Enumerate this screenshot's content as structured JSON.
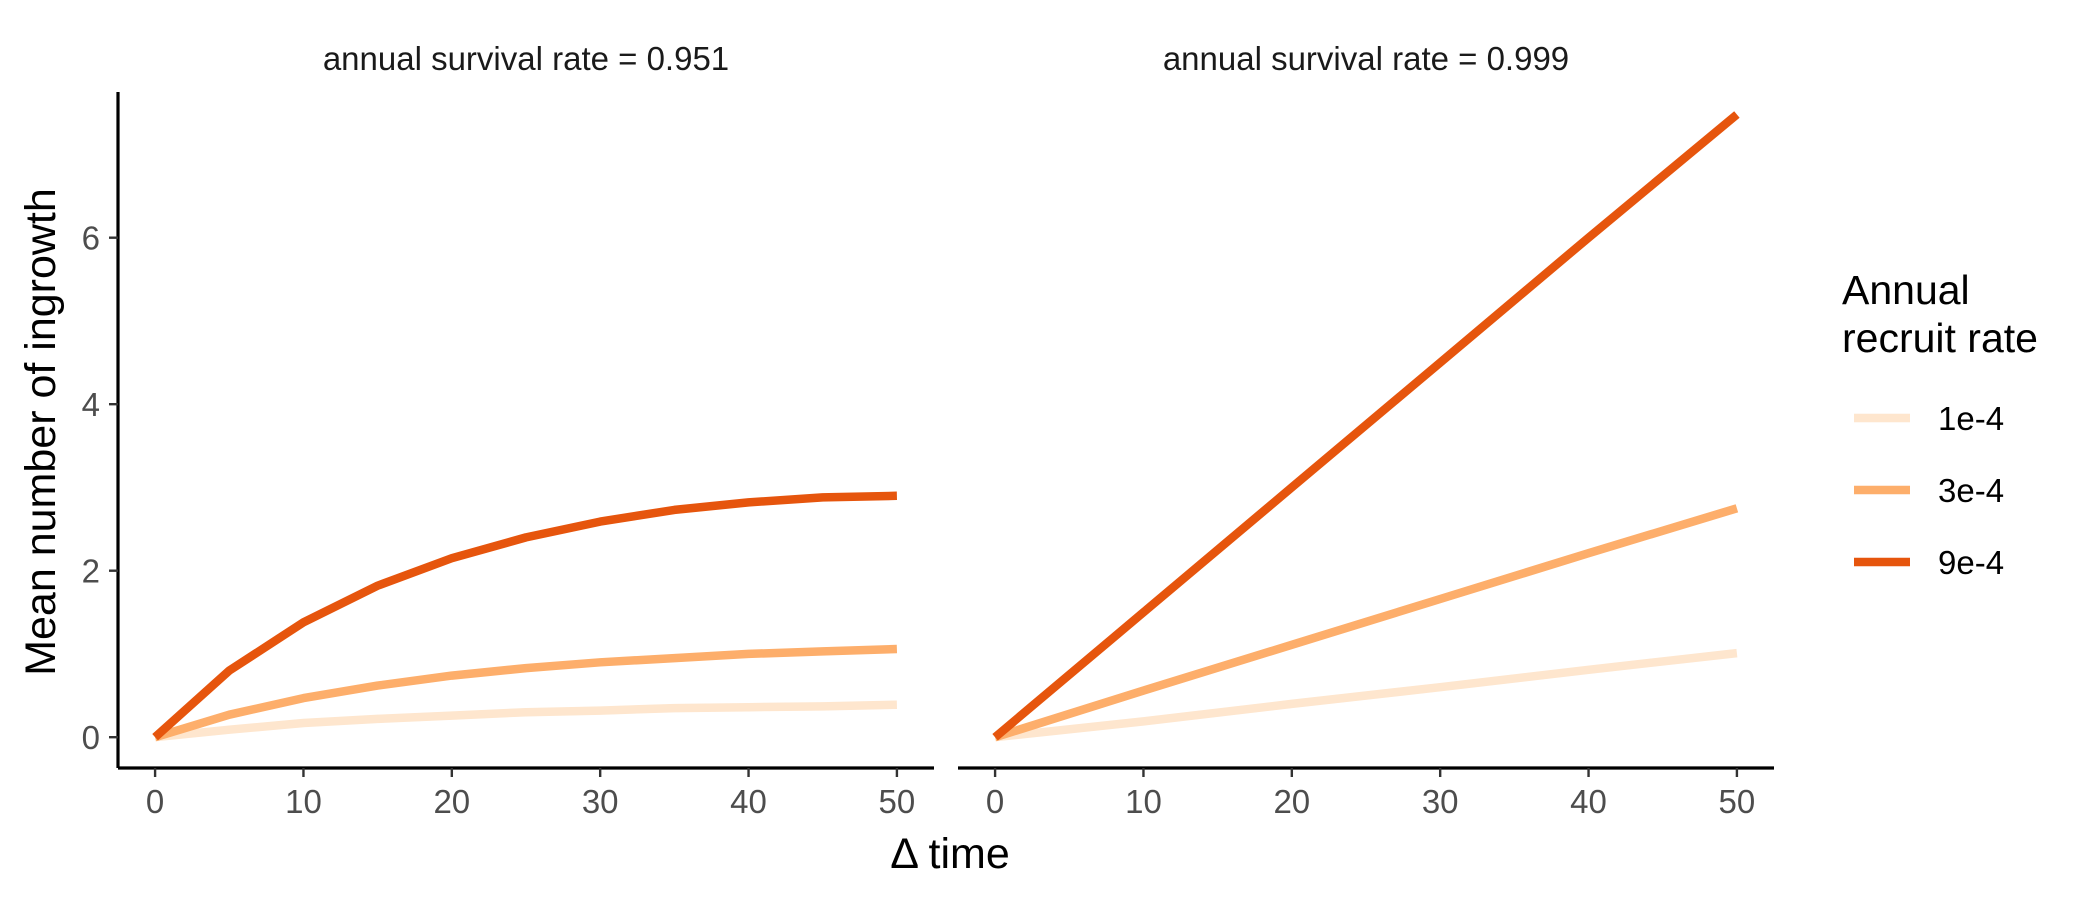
{
  "chart_data": {
    "type": "line",
    "ylabel": "Mean number of ingrowth",
    "xlabel": "Δ time",
    "legend": {
      "title_lines": [
        "Annual",
        "recruit rate"
      ],
      "placement": "right"
    },
    "grid": false,
    "xlim": [
      -2.5,
      52.5
    ],
    "ylim": [
      -0.37,
      7.75
    ],
    "x_ticks": [
      0,
      10,
      20,
      30,
      40,
      50
    ],
    "y_ticks": [
      0,
      2,
      4,
      6
    ],
    "series_styles": [
      {
        "name": "1e-4",
        "color": "#fee6ce"
      },
      {
        "name": "3e-4",
        "color": "#fdae6b"
      },
      {
        "name": "9e-4",
        "color": "#e6550d"
      }
    ],
    "panels": [
      {
        "strip": "annual survival rate = 0.951",
        "x": [
          0,
          5,
          10,
          15,
          20,
          25,
          30,
          35,
          40,
          45,
          50
        ],
        "series": [
          {
            "name": "1e-4",
            "values": [
              0,
              0.09,
              0.17,
              0.22,
              0.26,
              0.3,
              0.32,
              0.35,
              0.36,
              0.37,
              0.39
            ]
          },
          {
            "name": "3e-4",
            "values": [
              0,
              0.27,
              0.47,
              0.62,
              0.74,
              0.83,
              0.9,
              0.95,
              1.0,
              1.03,
              1.06
            ]
          },
          {
            "name": "9e-4",
            "values": [
              0,
              0.8,
              1.38,
              1.82,
              2.15,
              2.4,
              2.59,
              2.73,
              2.82,
              2.88,
              2.9
            ]
          }
        ]
      },
      {
        "strip": "annual survival rate = 0.999",
        "x": [
          0,
          10,
          20,
          30,
          40,
          50
        ],
        "series": [
          {
            "name": "1e-4",
            "values": [
              0,
              0.19,
              0.4,
              0.6,
              0.81,
              1.01
            ]
          },
          {
            "name": "3e-4",
            "values": [
              0,
              0.56,
              1.11,
              1.66,
              2.21,
              2.75
            ]
          },
          {
            "name": "9e-4",
            "values": [
              0,
              1.5,
              3.0,
              4.5,
              6.0,
              7.48
            ]
          }
        ]
      }
    ]
  }
}
